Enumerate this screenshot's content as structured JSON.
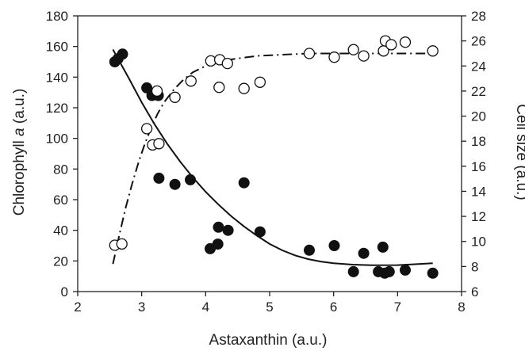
{
  "chart_data": {
    "type": "scatter",
    "xlabel": "Astaxanthin (a.u.)",
    "ylabel_prefix": "Chlorophyll ",
    "ylabel_italic": "a",
    "ylabel_suffix": " (a.u.)",
    "y2label": "Cell size (a.u.)",
    "xlim": [
      2,
      8
    ],
    "ylim": [
      0,
      180
    ],
    "y2lim": [
      6,
      28
    ],
    "xticks": [
      "2",
      "3",
      "4",
      "5",
      "6",
      "7",
      "8"
    ],
    "yticks": [
      "0",
      "20",
      "40",
      "60",
      "80",
      "100",
      "120",
      "140",
      "160",
      "180"
    ],
    "y2ticks": [
      "6",
      "8",
      "10",
      "12",
      "14",
      "16",
      "18",
      "20",
      "22",
      "24",
      "26",
      "28"
    ],
    "grid": false,
    "legend": "none",
    "series": [
      {
        "marker": "filled-circle",
        "axis": "left",
        "color": "#111111",
        "points": [
          [
            2.58,
            150
          ],
          [
            2.63,
            152
          ],
          [
            2.7,
            155
          ],
          [
            3.08,
            133
          ],
          [
            3.16,
            128
          ],
          [
            3.26,
            128
          ],
          [
            3.27,
            74
          ],
          [
            3.52,
            70
          ],
          [
            3.76,
            73
          ],
          [
            4.07,
            28
          ],
          [
            4.19,
            31
          ],
          [
            4.2,
            42
          ],
          [
            4.35,
            40
          ],
          [
            4.6,
            71
          ],
          [
            4.85,
            39
          ],
          [
            5.62,
            27
          ],
          [
            6.01,
            30
          ],
          [
            6.31,
            13
          ],
          [
            6.47,
            25
          ],
          [
            6.7,
            13
          ],
          [
            6.77,
            29
          ],
          [
            6.8,
            12
          ],
          [
            6.87,
            13
          ],
          [
            7.12,
            14
          ],
          [
            7.55,
            12
          ]
        ]
      },
      {
        "marker": "open-circle",
        "axis": "right",
        "color": "#111111",
        "points": [
          [
            2.58,
            9.7
          ],
          [
            2.69,
            9.8
          ],
          [
            3.08,
            19.0
          ],
          [
            3.17,
            17.7
          ],
          [
            3.27,
            17.8
          ],
          [
            3.24,
            22.0
          ],
          [
            3.52,
            21.5
          ],
          [
            3.77,
            22.8
          ],
          [
            4.08,
            24.4
          ],
          [
            4.21,
            22.3
          ],
          [
            4.22,
            24.5
          ],
          [
            4.34,
            24.2
          ],
          [
            4.6,
            22.2
          ],
          [
            4.85,
            22.7
          ],
          [
            5.62,
            25.0
          ],
          [
            6.01,
            24.7
          ],
          [
            6.31,
            25.3
          ],
          [
            6.47,
            24.8
          ],
          [
            6.78,
            25.2
          ],
          [
            6.81,
            26.0
          ],
          [
            6.9,
            25.7
          ],
          [
            7.12,
            25.9
          ],
          [
            7.55,
            25.2
          ]
        ]
      }
    ],
    "fit_lines": [
      {
        "style": "solid",
        "axis": "left",
        "points": [
          [
            2.55,
            158
          ],
          [
            2.8,
            139.2
          ],
          [
            3.0,
            123.5
          ],
          [
            3.2,
            109.3
          ],
          [
            3.4,
            96.4
          ],
          [
            3.6,
            84.9
          ],
          [
            3.8,
            74.5
          ],
          [
            4.0,
            65.1
          ],
          [
            4.2,
            56.8
          ],
          [
            4.4,
            49.2
          ],
          [
            4.6,
            42.5
          ],
          [
            4.8,
            36.5
          ],
          [
            5.0,
            31.1
          ],
          [
            5.2,
            26.9
          ],
          [
            5.4,
            23.6
          ],
          [
            5.6,
            21.2
          ],
          [
            5.8,
            19.6
          ],
          [
            6.0,
            18.5
          ],
          [
            6.3,
            17.6
          ],
          [
            6.6,
            17.2
          ],
          [
            7.0,
            17.3
          ],
          [
            7.3,
            17.9
          ],
          [
            7.55,
            18.5
          ]
        ]
      },
      {
        "style": "dash-dot",
        "axis": "right",
        "points": [
          [
            2.55,
            8.2
          ],
          [
            2.65,
            10.5
          ],
          [
            2.75,
            12.7
          ],
          [
            2.85,
            14.6
          ],
          [
            2.95,
            16.3
          ],
          [
            3.05,
            17.8
          ],
          [
            3.15,
            19.1
          ],
          [
            3.25,
            20.2
          ],
          [
            3.35,
            21.1
          ],
          [
            3.5,
            22.1
          ],
          [
            3.65,
            22.9
          ],
          [
            3.8,
            23.5
          ],
          [
            4.0,
            24.0
          ],
          [
            4.25,
            24.4
          ],
          [
            4.5,
            24.6
          ],
          [
            4.8,
            24.8
          ],
          [
            5.2,
            24.9
          ],
          [
            5.6,
            25.0
          ],
          [
            6.2,
            25.0
          ],
          [
            7.0,
            25.0
          ],
          [
            7.55,
            25.0
          ]
        ]
      }
    ]
  }
}
